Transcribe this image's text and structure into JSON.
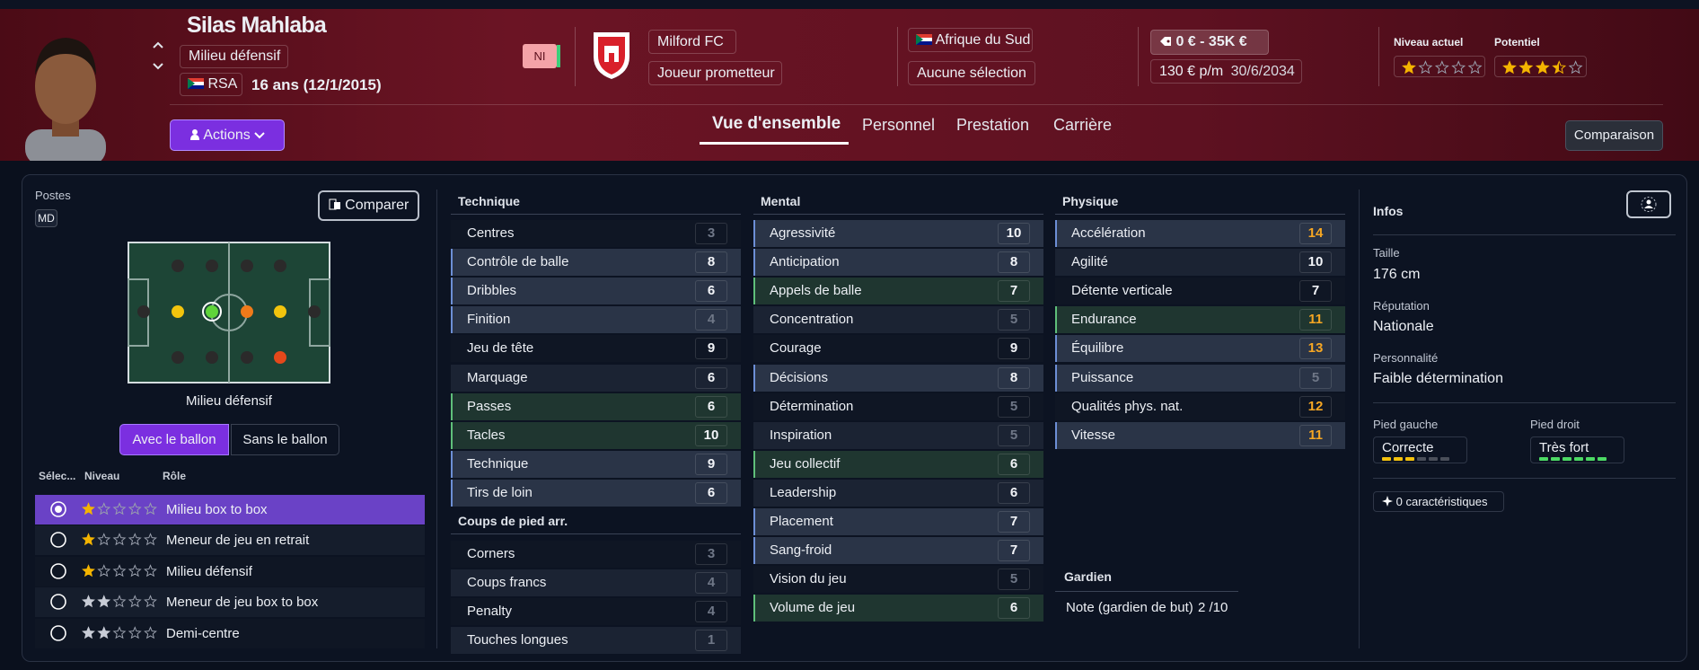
{
  "header": {
    "name": "Silas Mahlaba",
    "position": "Milieu défensif",
    "nationality": "RSA",
    "age": "16 ans (12/1/2015)",
    "badge": "NI",
    "club": "Milford FC",
    "status": "Joueur prometteur",
    "country": "Afrique du Sud",
    "selection": "Aucune sélection",
    "value": "0 € - 35K €",
    "wage": "130 € p/m",
    "contract_end": "30/6/2034",
    "current_label": "Niveau actuel",
    "current_stars": 1,
    "potential_label": "Potentiel",
    "potential_stars": 3.5,
    "actions": "Actions",
    "tabs": [
      "Vue d'ensemble",
      "Personnel",
      "Prestation",
      "Carrière"
    ],
    "compare": "Comparaison"
  },
  "positions": {
    "title": "Postes",
    "code": "MD",
    "compare": "Comparer",
    "selected": "Milieu défensif",
    "toggle": [
      "Avec le ballon",
      "Sans le ballon"
    ],
    "columns": [
      "Sélec...",
      "Niveau",
      "Rôle"
    ],
    "roles": [
      {
        "name": "Milieu box to box",
        "stars": 1,
        "color": "#f4b400"
      },
      {
        "name": "Meneur de jeu en retrait",
        "stars": 1,
        "color": "#f4b400"
      },
      {
        "name": "Milieu défensif",
        "stars": 1,
        "color": "#f4b400"
      },
      {
        "name": "Meneur de jeu box to box",
        "stars": 2,
        "color": "#c8ccd6"
      },
      {
        "name": "Demi-centre",
        "stars": 2,
        "color": "#c8ccd6"
      }
    ]
  },
  "attributes": {
    "groups": [
      {
        "title": "Technique",
        "items": [
          {
            "name": "Centres",
            "value": 3
          },
          {
            "name": "Contrôle de balle",
            "value": 8,
            "tint": "blue"
          },
          {
            "name": "Dribbles",
            "value": 6,
            "tint": "blue"
          },
          {
            "name": "Finition",
            "value": 4,
            "tint": "blue"
          },
          {
            "name": "Jeu de tête",
            "value": 9
          },
          {
            "name": "Marquage",
            "value": 6
          },
          {
            "name": "Passes",
            "value": 6,
            "tint": "green"
          },
          {
            "name": "Tacles",
            "value": 10,
            "tint": "green"
          },
          {
            "name": "Technique",
            "value": 9,
            "tint": "blue"
          },
          {
            "name": "Tirs de loin",
            "value": 6,
            "tint": "blue"
          }
        ]
      },
      {
        "title": "Coups de pied arr.",
        "items": [
          {
            "name": "Corners",
            "value": 3
          },
          {
            "name": "Coups francs",
            "value": 4
          },
          {
            "name": "Penalty",
            "value": 4
          },
          {
            "name": "Touches longues",
            "value": 1
          }
        ]
      },
      {
        "title": "Mental",
        "items": [
          {
            "name": "Agressivité",
            "value": 10,
            "tint": "blue"
          },
          {
            "name": "Anticipation",
            "value": 8,
            "tint": "blue"
          },
          {
            "name": "Appels de balle",
            "value": 7,
            "tint": "green"
          },
          {
            "name": "Concentration",
            "value": 5
          },
          {
            "name": "Courage",
            "value": 9
          },
          {
            "name": "Décisions",
            "value": 8,
            "tint": "blue"
          },
          {
            "name": "Détermination",
            "value": 5
          },
          {
            "name": "Inspiration",
            "value": 5
          },
          {
            "name": "Jeu collectif",
            "value": 6,
            "tint": "green"
          },
          {
            "name": "Leadership",
            "value": 6
          },
          {
            "name": "Placement",
            "value": 7,
            "tint": "blue"
          },
          {
            "name": "Sang-froid",
            "value": 7,
            "tint": "blue"
          },
          {
            "name": "Vision du jeu",
            "value": 5
          },
          {
            "name": "Volume de jeu",
            "value": 6,
            "tint": "green"
          }
        ]
      },
      {
        "title": "Physique",
        "items": [
          {
            "name": "Accélération",
            "value": 14,
            "tint": "blue",
            "value_color": "#f5a623"
          },
          {
            "name": "Agilité",
            "value": 10
          },
          {
            "name": "Détente verticale",
            "value": 7
          },
          {
            "name": "Endurance",
            "value": 11,
            "tint": "green",
            "value_color": "#f5a623"
          },
          {
            "name": "Équilibre",
            "value": 13,
            "tint": "blue",
            "value_color": "#f5a623"
          },
          {
            "name": "Puissance",
            "value": 5,
            "tint": "blue"
          },
          {
            "name": "Qualités phys. nat.",
            "value": 12,
            "value_color": "#f5a623"
          },
          {
            "name": "Vitesse",
            "value": 11,
            "tint": "blue",
            "value_color": "#f5a623"
          }
        ]
      }
    ],
    "goalkeeper": {
      "title": "Gardien",
      "label": "Note (gardien de but)",
      "value": "2 /10"
    }
  },
  "infos": {
    "title": "Infos",
    "height_label": "Taille",
    "height": "176 cm",
    "reputation_label": "Réputation",
    "reputation": "Nationale",
    "personality_label": "Personnalité",
    "personality": "Faible détermination",
    "left_foot_label": "Pied gauche",
    "left_foot": "Correcte",
    "left_foot_level": 3,
    "left_foot_color": "#f4c20d",
    "right_foot_label": "Pied droit",
    "right_foot": "Très fort",
    "right_foot_level": 6,
    "right_foot_color": "#4cd964",
    "traits": "0 caractéristiques"
  }
}
